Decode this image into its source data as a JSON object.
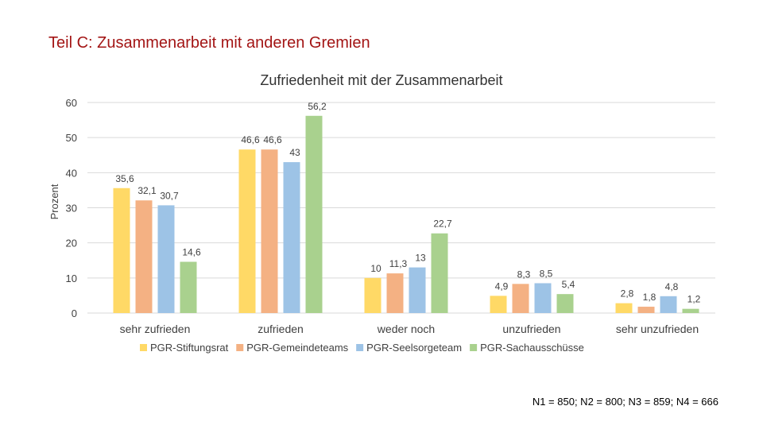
{
  "slide": {
    "title": "Teil C: Zusammenarbeit mit anderen Gremien",
    "footnote": "N1 = 850; N2 = 800; N3 = 859; N4 = 666"
  },
  "chart_data": {
    "type": "bar",
    "title": "Zufriedenheit mit der Zusammenarbeit",
    "xlabel": "",
    "ylabel": "Prozent",
    "ylim": [
      0,
      60
    ],
    "yticks": [
      0,
      10,
      20,
      30,
      40,
      50,
      60
    ],
    "grid": true,
    "legend_position": "bottom",
    "categories": [
      "sehr zufrieden",
      "zufrieden",
      "weder noch",
      "unzufrieden",
      "sehr unzufrieden"
    ],
    "series": [
      {
        "name": "PGR-Stiftungsrat",
        "color": "#FFD966",
        "values": [
          35.6,
          46.6,
          10,
          4.9,
          2.8
        ],
        "labels": [
          "35,6",
          "46,6",
          "10",
          "4,9",
          "2,8"
        ]
      },
      {
        "name": "PGR-Gemeindeteams",
        "color": "#F4B183",
        "values": [
          32.1,
          46.6,
          11.3,
          8.3,
          1.8
        ],
        "labels": [
          "32,1",
          "46,6",
          "11,3",
          "8,3",
          "1,8"
        ]
      },
      {
        "name": "PGR-Seelsorgeteam",
        "color": "#9DC3E6",
        "values": [
          30.7,
          43,
          13,
          8.5,
          4.8
        ],
        "labels": [
          "30,7",
          "43",
          "13",
          "8,5",
          "4,8"
        ]
      },
      {
        "name": "PGR-Sachausschüsse",
        "color": "#A9D18E",
        "values": [
          14.6,
          56.2,
          22.7,
          5.4,
          1.2
        ],
        "labels": [
          "14,6",
          "56,2",
          "22,7",
          "5,4",
          "1,2"
        ]
      }
    ]
  }
}
